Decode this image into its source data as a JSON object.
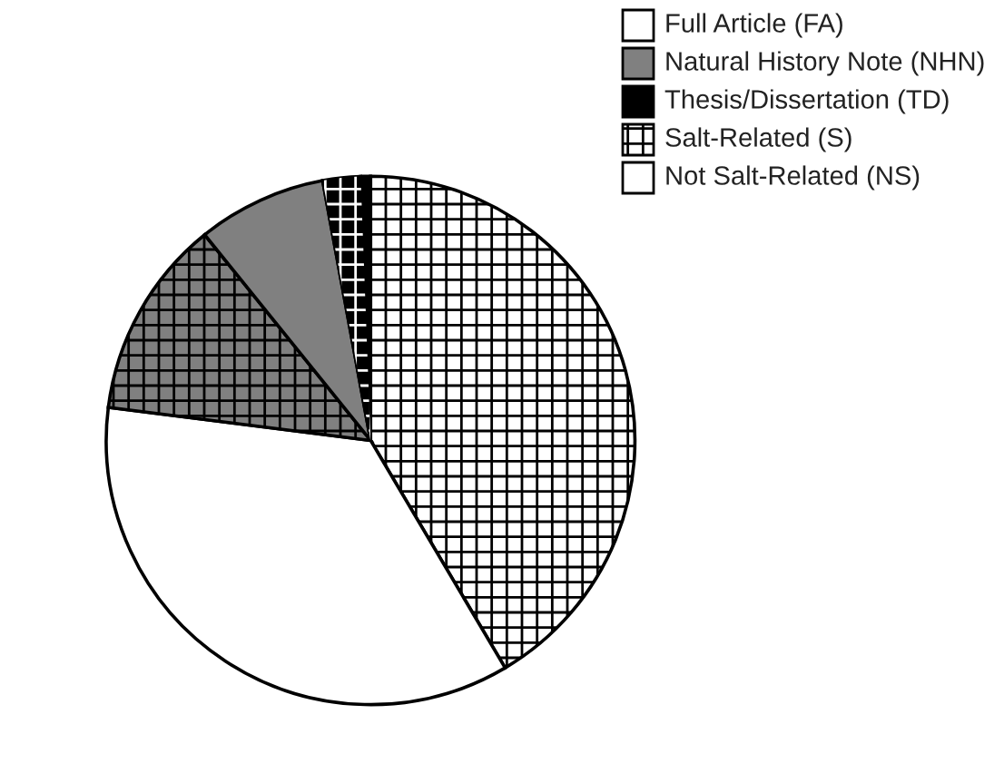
{
  "chart_data": {
    "type": "pie",
    "categories": [
      null,
      null,
      null,
      null,
      null,
      null
    ],
    "values": [
      41.5,
      35.5,
      12.2,
      7.9,
      2.3,
      0.6
    ],
    "colors": [
      "#ffffff",
      "#ffffff",
      "#808080",
      "#808080",
      "#000000",
      "#000000"
    ],
    "annotations": [
      "Full Article (FA)",
      "Natural History Note (NHN)",
      "Thesis/Dissertation (TD)",
      "Salt-Related (S)",
      "Not Salt-Related (NS)"
    ]
  }
}
